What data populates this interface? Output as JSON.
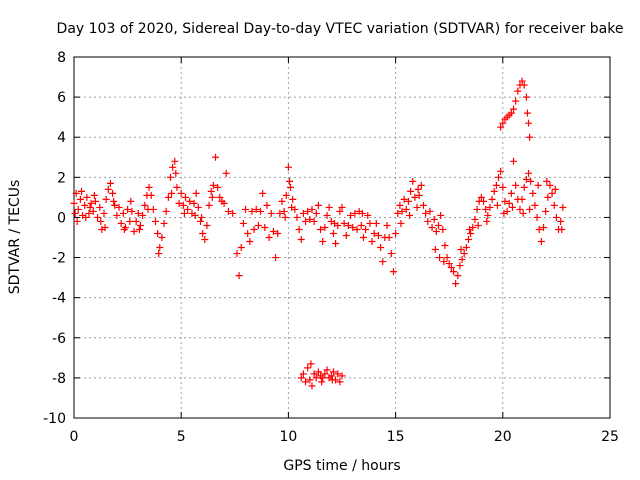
{
  "chart_data": {
    "type": "scatter",
    "title": "Day 103 of 2020, Sidereal Day-to-day VTEC variation (SDTVAR) for receiver bake",
    "xlabel": "GPS time / hours",
    "ylabel": "SDTVAR / TECUs",
    "xlim": [
      0,
      25
    ],
    "ylim": [
      -10,
      8
    ],
    "xticks": [
      "0",
      "5",
      "10",
      "15",
      "20",
      "25"
    ],
    "yticks": [
      "8",
      "6",
      "4",
      "2",
      "0",
      "-2",
      "-4",
      "-6",
      "-8",
      "-10"
    ],
    "grid": true,
    "marker": "+",
    "color": "#ff0000",
    "series": [
      {
        "name": "SDTVAR",
        "points": [
          [
            0.0,
            0.7
          ],
          [
            0.1,
            1.2
          ],
          [
            0.2,
            0.4
          ],
          [
            0.3,
            0.9
          ],
          [
            0.4,
            0.1
          ],
          [
            0.5,
            0.6
          ],
          [
            0.6,
            1.0
          ],
          [
            0.7,
            0.2
          ],
          [
            0.8,
            0.7
          ],
          [
            0.9,
            0.3
          ],
          [
            1.0,
            0.8
          ],
          [
            1.1,
            0.0
          ],
          [
            1.2,
            0.5
          ],
          [
            1.3,
            -0.6
          ],
          [
            1.4,
            0.2
          ],
          [
            1.5,
            0.9
          ],
          [
            1.6,
            1.4
          ],
          [
            1.7,
            1.7
          ],
          [
            1.8,
            1.2
          ],
          [
            1.9,
            0.6
          ],
          [
            2.0,
            0.1
          ],
          [
            2.1,
            0.5
          ],
          [
            2.2,
            -0.3
          ],
          [
            2.3,
            0.2
          ],
          [
            2.4,
            -0.5
          ],
          [
            2.5,
            0.4
          ],
          [
            2.6,
            -0.2
          ],
          [
            2.7,
            0.3
          ],
          [
            2.8,
            -0.7
          ],
          [
            2.9,
            -0.2
          ],
          [
            3.0,
            0.2
          ],
          [
            3.1,
            -0.4
          ],
          [
            3.2,
            0.1
          ],
          [
            3.3,
            0.6
          ],
          [
            3.4,
            1.1
          ],
          [
            3.5,
            1.5
          ],
          [
            3.6,
            1.1
          ],
          [
            3.7,
            0.4
          ],
          [
            3.8,
            -0.2
          ],
          [
            3.9,
            -0.8
          ],
          [
            4.0,
            -1.5
          ],
          [
            4.1,
            -1.0
          ],
          [
            4.2,
            -0.3
          ],
          [
            4.3,
            0.3
          ],
          [
            4.4,
            1.0
          ],
          [
            4.5,
            2.0
          ],
          [
            4.6,
            2.5
          ],
          [
            4.7,
            2.8
          ],
          [
            4.8,
            1.5
          ],
          [
            4.9,
            0.7
          ],
          [
            5.0,
            1.2
          ],
          [
            5.1,
            0.6
          ],
          [
            5.2,
            1.0
          ],
          [
            5.3,
            0.4
          ],
          [
            5.4,
            0.8
          ],
          [
            5.5,
            0.2
          ],
          [
            5.6,
            0.7
          ],
          [
            5.7,
            1.2
          ],
          [
            5.8,
            0.5
          ],
          [
            5.9,
            -0.2
          ],
          [
            6.0,
            -0.8
          ],
          [
            6.1,
            -1.1
          ],
          [
            6.2,
            -0.4
          ],
          [
            6.3,
            0.6
          ],
          [
            6.4,
            1.3
          ],
          [
            6.5,
            1.6
          ],
          [
            6.6,
            3.0
          ],
          [
            6.7,
            1.5
          ],
          [
            6.8,
            1.0
          ],
          [
            6.9,
            0.8
          ],
          [
            7.0,
            0.7
          ],
          [
            7.1,
            2.2
          ],
          [
            7.2,
            0.3
          ],
          [
            7.4,
            0.2
          ],
          [
            7.6,
            -1.8
          ],
          [
            7.7,
            -2.9
          ],
          [
            7.8,
            -1.5
          ],
          [
            7.9,
            -0.3
          ],
          [
            8.0,
            0.4
          ],
          [
            8.1,
            -0.8
          ],
          [
            8.2,
            -1.2
          ],
          [
            8.3,
            0.3
          ],
          [
            8.4,
            -0.6
          ],
          [
            8.5,
            0.4
          ],
          [
            8.6,
            -0.4
          ],
          [
            8.7,
            0.3
          ],
          [
            8.8,
            1.2
          ],
          [
            8.9,
            -0.5
          ],
          [
            9.0,
            0.6
          ],
          [
            9.1,
            -1.0
          ],
          [
            9.2,
            0.2
          ],
          [
            9.3,
            -0.7
          ],
          [
            9.4,
            -2.0
          ],
          [
            9.5,
            -0.8
          ],
          [
            9.6,
            0.2
          ],
          [
            9.7,
            0.8
          ],
          [
            9.8,
            0.3
          ],
          [
            9.9,
            1.1
          ],
          [
            10.0,
            2.5
          ],
          [
            10.1,
            1.5
          ],
          [
            10.2,
            0.9
          ],
          [
            10.3,
            0.4
          ],
          [
            10.4,
            0.0
          ],
          [
            10.5,
            -0.6
          ],
          [
            10.6,
            -1.1
          ],
          [
            10.7,
            0.2
          ],
          [
            10.8,
            -0.2
          ],
          [
            10.9,
            0.3
          ],
          [
            11.0,
            -0.1
          ],
          [
            11.1,
            0.4
          ],
          [
            11.2,
            -0.2
          ],
          [
            11.3,
            0.2
          ],
          [
            11.4,
            0.6
          ],
          [
            11.5,
            -0.6
          ],
          [
            11.6,
            -1.2
          ],
          [
            11.7,
            -0.5
          ],
          [
            11.8,
            0.1
          ],
          [
            11.9,
            0.5
          ],
          [
            12.0,
            -0.2
          ],
          [
            12.1,
            -0.8
          ],
          [
            12.2,
            -1.3
          ],
          [
            12.3,
            -0.4
          ],
          [
            12.4,
            0.3
          ],
          [
            12.5,
            0.5
          ],
          [
            12.6,
            -0.3
          ],
          [
            12.7,
            -0.9
          ],
          [
            12.8,
            -0.4
          ],
          [
            12.9,
            0.1
          ],
          [
            13.0,
            -0.5
          ],
          [
            13.1,
            0.2
          ],
          [
            13.2,
            -0.6
          ],
          [
            13.3,
            0.3
          ],
          [
            13.4,
            -0.4
          ],
          [
            13.5,
            -1.0
          ],
          [
            13.6,
            -0.6
          ],
          [
            13.7,
            0.1
          ],
          [
            13.8,
            -0.3
          ],
          [
            13.9,
            -1.2
          ],
          [
            14.0,
            -0.8
          ],
          [
            14.1,
            -0.3
          ],
          [
            14.2,
            -0.9
          ],
          [
            14.3,
            -1.5
          ],
          [
            14.4,
            -2.2
          ],
          [
            14.5,
            -1.0
          ],
          [
            14.6,
            -0.4
          ],
          [
            14.7,
            -1.0
          ],
          [
            14.8,
            -1.8
          ],
          [
            14.9,
            -2.7
          ],
          [
            15.0,
            -0.8
          ],
          [
            15.1,
            0.2
          ],
          [
            15.2,
            0.6
          ],
          [
            15.3,
            0.3
          ],
          [
            15.4,
            0.9
          ],
          [
            15.5,
            0.4
          ],
          [
            15.6,
            0.8
          ],
          [
            15.7,
            1.3
          ],
          [
            15.8,
            1.8
          ],
          [
            15.9,
            1.0
          ],
          [
            16.0,
            0.5
          ],
          [
            16.1,
            1.1
          ],
          [
            16.2,
            1.6
          ],
          [
            16.3,
            0.6
          ],
          [
            16.4,
            0.2
          ],
          [
            16.5,
            -0.2
          ],
          [
            16.6,
            0.3
          ],
          [
            16.7,
            -0.5
          ],
          [
            16.8,
            -0.1
          ],
          [
            16.9,
            -0.7
          ],
          [
            17.0,
            -0.4
          ],
          [
            17.1,
            0.1
          ],
          [
            17.2,
            -0.6
          ],
          [
            17.3,
            -1.4
          ],
          [
            17.4,
            -2.0
          ],
          [
            17.5,
            -2.3
          ],
          [
            17.6,
            -2.5
          ],
          [
            17.7,
            -2.7
          ],
          [
            17.8,
            -3.3
          ],
          [
            17.9,
            -2.9
          ],
          [
            18.0,
            -2.4
          ],
          [
            18.1,
            -2.1
          ],
          [
            18.2,
            -1.8
          ],
          [
            18.3,
            -1.5
          ],
          [
            18.4,
            -1.1
          ],
          [
            18.5,
            -0.8
          ],
          [
            18.6,
            -0.5
          ],
          [
            18.7,
            -0.1
          ],
          [
            18.8,
            0.4
          ],
          [
            18.9,
            0.8
          ],
          [
            19.0,
            1.0
          ],
          [
            19.1,
            0.8
          ],
          [
            19.2,
            0.4
          ],
          [
            19.3,
            0.1
          ],
          [
            19.4,
            0.5
          ],
          [
            19.5,
            0.9
          ],
          [
            19.6,
            1.3
          ],
          [
            19.7,
            1.6
          ],
          [
            19.8,
            2.0
          ],
          [
            19.9,
            2.3
          ],
          [
            20.0,
            1.5
          ],
          [
            20.1,
            0.8
          ],
          [
            20.2,
            0.3
          ],
          [
            20.3,
            0.7
          ],
          [
            20.4,
            1.2
          ],
          [
            20.5,
            2.8
          ],
          [
            20.6,
            1.6
          ],
          [
            20.7,
            0.9
          ],
          [
            20.8,
            0.4
          ],
          [
            20.9,
            0.9
          ],
          [
            21.0,
            1.5
          ],
          [
            21.1,
            1.9
          ],
          [
            21.2,
            2.2
          ],
          [
            21.3,
            1.8
          ],
          [
            21.4,
            1.2
          ],
          [
            21.5,
            0.6
          ],
          [
            21.6,
            0.0
          ],
          [
            21.7,
            -0.6
          ],
          [
            21.8,
            -1.2
          ],
          [
            21.9,
            -0.5
          ],
          [
            22.0,
            0.3
          ],
          [
            22.1,
            1.0
          ],
          [
            22.2,
            1.6
          ],
          [
            22.3,
            1.2
          ],
          [
            22.4,
            0.6
          ],
          [
            22.5,
            0.0
          ],
          [
            22.6,
            -0.6
          ],
          [
            22.7,
            -0.2
          ],
          [
            22.8,
            0.5
          ],
          [
            0.05,
            0.2
          ],
          [
            0.15,
            -0.2
          ],
          [
            0.35,
            1.3
          ],
          [
            0.55,
            0.0
          ],
          [
            0.75,
            0.5
          ],
          [
            0.95,
            1.1
          ],
          [
            1.25,
            -0.2
          ],
          [
            1.45,
            -0.5
          ],
          [
            1.85,
            0.8
          ],
          [
            2.35,
            -0.6
          ],
          [
            2.65,
            0.8
          ],
          [
            3.05,
            -0.6
          ],
          [
            3.45,
            0.4
          ],
          [
            3.95,
            -1.8
          ],
          [
            4.55,
            1.2
          ],
          [
            4.75,
            2.2
          ],
          [
            5.15,
            0.2
          ],
          [
            5.65,
            0.1
          ],
          [
            5.95,
            0.0
          ],
          [
            6.45,
            1.0
          ],
          [
            9.85,
            0.0
          ],
          [
            10.05,
            1.8
          ],
          [
            10.15,
            0.5
          ],
          [
            12.15,
            -0.3
          ],
          [
            13.45,
            0.2
          ],
          [
            15.25,
            -0.3
          ],
          [
            15.65,
            0.1
          ],
          [
            16.05,
            1.4
          ],
          [
            16.85,
            -1.6
          ],
          [
            17.05,
            -2.0
          ],
          [
            17.25,
            -2.2
          ],
          [
            18.05,
            -1.6
          ],
          [
            18.45,
            -0.6
          ],
          [
            18.85,
            -0.4
          ],
          [
            19.25,
            -0.2
          ],
          [
            19.75,
            0.6
          ],
          [
            20.05,
            0.2
          ],
          [
            20.45,
            0.5
          ],
          [
            20.95,
            0.2
          ],
          [
            21.25,
            0.4
          ],
          [
            21.65,
            1.6
          ],
          [
            22.05,
            1.8
          ],
          [
            22.45,
            1.4
          ],
          [
            22.75,
            -0.6
          ],
          [
            19.9,
            4.5
          ],
          [
            20.0,
            4.7
          ],
          [
            20.1,
            4.9
          ],
          [
            20.2,
            5.0
          ],
          [
            20.3,
            5.1
          ],
          [
            20.4,
            5.2
          ],
          [
            20.5,
            5.4
          ],
          [
            20.6,
            5.8
          ],
          [
            20.7,
            6.3
          ],
          [
            20.8,
            6.6
          ],
          [
            20.9,
            6.8
          ],
          [
            21.0,
            6.6
          ],
          [
            21.1,
            6.0
          ],
          [
            21.15,
            5.2
          ],
          [
            21.2,
            4.7
          ],
          [
            21.25,
            4.0
          ],
          [
            10.6,
            -8.0
          ],
          [
            10.7,
            -7.8
          ],
          [
            10.8,
            -8.2
          ],
          [
            10.9,
            -7.5
          ],
          [
            11.0,
            -8.1
          ],
          [
            11.1,
            -8.4
          ],
          [
            11.2,
            -7.8
          ],
          [
            11.3,
            -8.0
          ],
          [
            11.4,
            -7.7
          ],
          [
            11.5,
            -7.9
          ],
          [
            11.6,
            -8.0
          ],
          [
            11.7,
            -7.8
          ],
          [
            11.8,
            -7.6
          ],
          [
            11.9,
            -8.0
          ],
          [
            12.0,
            -7.9
          ],
          [
            12.1,
            -7.7
          ],
          [
            12.2,
            -8.1
          ],
          [
            12.3,
            -7.8
          ],
          [
            12.4,
            -8.2
          ],
          [
            12.5,
            -7.9
          ],
          [
            11.05,
            -7.3
          ],
          [
            11.55,
            -8.2
          ],
          [
            12.05,
            -8.1
          ]
        ]
      }
    ]
  }
}
